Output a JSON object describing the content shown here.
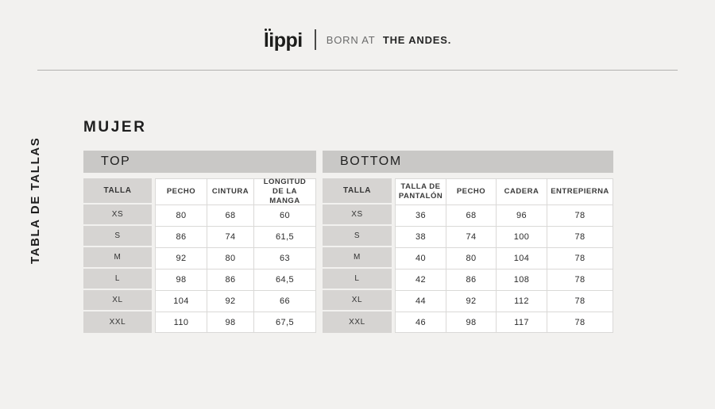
{
  "header": {
    "brand": "Lippi",
    "tagline_regular": "BORN AT",
    "tagline_bold": "THE ANDES."
  },
  "page_label": "TABLA DE TALLAS",
  "section_title": "MUJER",
  "tables": [
    {
      "title": "TOP",
      "headers": [
        "TALLA",
        "PECHO",
        "CINTURA",
        "LONGITUD DE LA MANGA"
      ],
      "rows": [
        [
          "XS",
          "80",
          "68",
          "60"
        ],
        [
          "S",
          "86",
          "74",
          "61,5"
        ],
        [
          "M",
          "92",
          "80",
          "63"
        ],
        [
          "L",
          "98",
          "86",
          "64,5"
        ],
        [
          "XL",
          "104",
          "92",
          "66"
        ],
        [
          "XXL",
          "110",
          "98",
          "67,5"
        ]
      ]
    },
    {
      "title": "BOTTOM",
      "headers": [
        "TALLA",
        "TALLA DE PANTALÓN",
        "PECHO",
        "CADERA",
        "ENTREPIERNA"
      ],
      "rows": [
        [
          "XS",
          "36",
          "68",
          "96",
          "78"
        ],
        [
          "S",
          "38",
          "74",
          "100",
          "78"
        ],
        [
          "M",
          "40",
          "80",
          "104",
          "78"
        ],
        [
          "L",
          "42",
          "86",
          "108",
          "78"
        ],
        [
          "XL",
          "44",
          "92",
          "112",
          "78"
        ],
        [
          "XXL",
          "46",
          "98",
          "117",
          "78"
        ]
      ]
    }
  ],
  "colors": {
    "background": "#f2f1ef",
    "section_bar": "#c9c8c6",
    "size_label_cell": "#d6d4d2",
    "cell_border": "#dad9d7",
    "text": "#2b2b2b",
    "tagline_muted": "#6b6b6b",
    "divider_rule": "#b2b1af"
  }
}
